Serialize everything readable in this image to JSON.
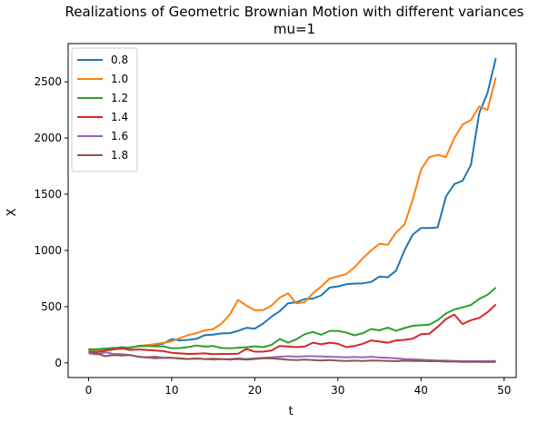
{
  "chart_data": {
    "type": "line",
    "title": "Realizations of Geometric Brownian Motion with different variances",
    "subtitle": "mu=1",
    "xlabel": "t",
    "ylabel": "X",
    "xlim": [
      -2.45,
      51.45
    ],
    "ylim": [
      -130,
      2840
    ],
    "xticks": [
      0,
      10,
      20,
      30,
      40,
      50
    ],
    "yticks": [
      0,
      500,
      1000,
      1500,
      2000,
      2500
    ],
    "grid": false,
    "legend_position": "top-left",
    "series": [
      {
        "name": "0.8",
        "color": "#1f77b4",
        "values": [
          120,
          122,
          125,
          135,
          128,
          138,
          148,
          150,
          160,
          172,
          212,
          200,
          205,
          215,
          248,
          252,
          262,
          265,
          285,
          312,
          305,
          350,
          410,
          460,
          530,
          540,
          568,
          572,
          600,
          670,
          680,
          700,
          705,
          708,
          720,
          768,
          762,
          820,
          1000,
          1140,
          1200,
          1200,
          1205,
          1480,
          1590,
          1620,
          1760,
          2220,
          2400,
          2710
        ]
      },
      {
        "name": "1.0",
        "color": "#ff7f0e",
        "values": [
          108,
          110,
          115,
          120,
          125,
          138,
          150,
          158,
          168,
          178,
          192,
          220,
          248,
          265,
          290,
          300,
          350,
          430,
          560,
          510,
          470,
          470,
          510,
          580,
          620,
          530,
          540,
          620,
          680,
          750,
          770,
          790,
          850,
          930,
          1000,
          1060,
          1050,
          1160,
          1230,
          1450,
          1720,
          1830,
          1850,
          1830,
          2000,
          2120,
          2160,
          2280,
          2250,
          2540
        ]
      },
      {
        "name": "1.2",
        "color": "#2ca02c",
        "values": [
          118,
          120,
          128,
          130,
          140,
          132,
          152,
          150,
          148,
          148,
          130,
          132,
          140,
          155,
          145,
          150,
          132,
          130,
          135,
          140,
          148,
          140,
          160,
          212,
          180,
          210,
          255,
          275,
          250,
          285,
          285,
          270,
          245,
          265,
          302,
          290,
          315,
          285,
          310,
          330,
          335,
          340,
          380,
          440,
          475,
          495,
          515,
          570,
          605,
          670
        ]
      },
      {
        "name": "1.4",
        "color": "#d62728",
        "values": [
          100,
          95,
          110,
          120,
          130,
          115,
          120,
          115,
          110,
          105,
          90,
          85,
          80,
          82,
          85,
          78,
          80,
          80,
          82,
          125,
          100,
          100,
          110,
          150,
          145,
          140,
          145,
          180,
          165,
          180,
          170,
          140,
          150,
          170,
          200,
          190,
          180,
          200,
          205,
          215,
          255,
          260,
          320,
          390,
          430,
          345,
          380,
          400,
          450,
          520
        ]
      },
      {
        "name": "1.6",
        "color": "#9467bd",
        "values": [
          85,
          75,
          95,
          80,
          78,
          70,
          55,
          48,
          40,
          45,
          45,
          38,
          35,
          38,
          35,
          30,
          33,
          35,
          40,
          35,
          40,
          45,
          50,
          55,
          60,
          55,
          60,
          60,
          58,
          55,
          52,
          50,
          52,
          50,
          55,
          48,
          45,
          40,
          35,
          32,
          28,
          25,
          22,
          20,
          18,
          16,
          15,
          15,
          16,
          17
        ]
      },
      {
        "name": "1.8",
        "color": "#8c564b",
        "values": [
          100,
          85,
          60,
          70,
          65,
          70,
          55,
          50,
          55,
          45,
          45,
          40,
          35,
          40,
          35,
          38,
          35,
          30,
          35,
          30,
          35,
          40,
          40,
          35,
          28,
          25,
          30,
          25,
          22,
          25,
          20,
          18,
          20,
          18,
          22,
          20,
          18,
          15,
          20,
          18,
          18,
          15,
          15,
          12,
          12,
          10,
          10,
          10,
          8,
          10
        ]
      }
    ]
  }
}
